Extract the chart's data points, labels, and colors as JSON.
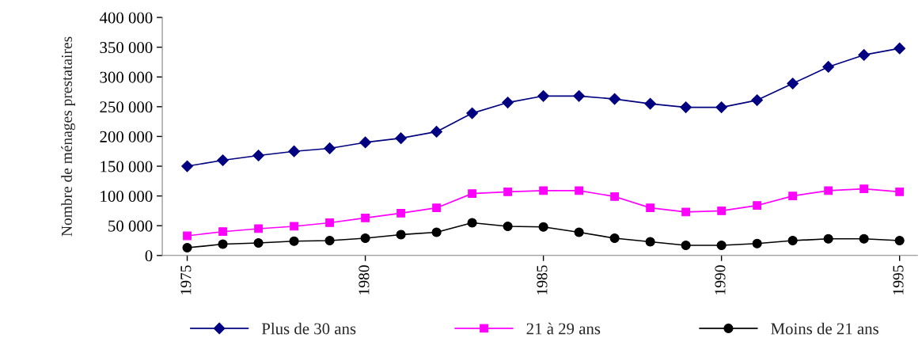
{
  "chart_data": {
    "type": "line",
    "ylabel": "Nombre de ménages prestataires",
    "x": [
      1975,
      1976,
      1977,
      1978,
      1979,
      1980,
      1981,
      1982,
      1983,
      1984,
      1985,
      1986,
      1987,
      1988,
      1989,
      1990,
      1991,
      1992,
      1993,
      1994,
      1995
    ],
    "series": [
      {
        "name": "Plus de 30 ans",
        "color": "#000080",
        "marker": "diamond",
        "values": [
          150000,
          160000,
          168000,
          175000,
          180000,
          190000,
          197000,
          208000,
          239000,
          257000,
          268000,
          268000,
          263000,
          255000,
          249000,
          249000,
          261000,
          289000,
          317000,
          337000,
          348000
        ]
      },
      {
        "name": "21 à 29 ans",
        "color": "#ff00ff",
        "marker": "square",
        "values": [
          33000,
          40000,
          45000,
          49000,
          55000,
          63000,
          71000,
          80000,
          104000,
          107000,
          109000,
          109000,
          99000,
          80000,
          73000,
          75000,
          84000,
          100000,
          109000,
          112000,
          107000
        ]
      },
      {
        "name": "Moins de 21 ans",
        "color": "#000000",
        "marker": "circle",
        "values": [
          13000,
          19000,
          21000,
          24000,
          25000,
          29000,
          35000,
          39000,
          55000,
          49000,
          48000,
          39000,
          29000,
          23000,
          17000,
          17000,
          20000,
          25000,
          28000,
          28000,
          25000
        ]
      }
    ],
    "xlim": [
      1974.3,
      1995.5
    ],
    "xticks": [
      1975,
      1980,
      1985,
      1990,
      1995
    ],
    "ylim": [
      0,
      400000
    ],
    "yticks": [
      0,
      {
        "value": 50000,
        "label": "50 000"
      },
      {
        "value": 100000,
        "label": "100 000"
      },
      {
        "value": 150000,
        "label": "150 000"
      },
      {
        "value": 200000,
        "label": "200 000"
      },
      {
        "value": 250000,
        "label": "250 000"
      },
      {
        "value": 300000,
        "label": "300 000"
      },
      {
        "value": 350000,
        "label": "350 000"
      },
      {
        "value": 400000,
        "label": "400 000"
      }
    ],
    "grid": false,
    "legend": "bottom",
    "line_style": "solid"
  }
}
